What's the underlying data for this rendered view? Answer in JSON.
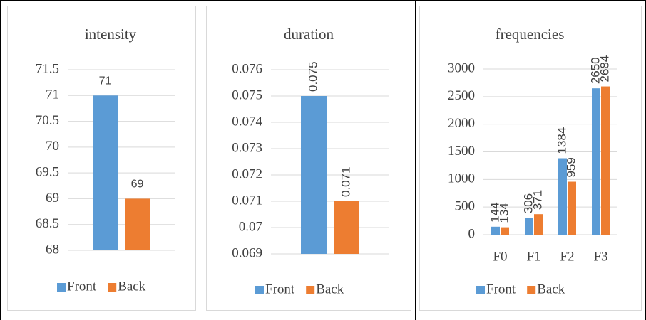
{
  "chart_data": [
    {
      "type": "bar",
      "title": "intensity",
      "categories": [
        null
      ],
      "series": [
        {
          "name": "Front",
          "color": "#5b9bd5",
          "values": [
            71
          ]
        },
        {
          "name": "Back",
          "color": "#ed7d31",
          "values": [
            69
          ]
        }
      ],
      "ylim": [
        68,
        71.5
      ],
      "yticks": [
        68,
        68.5,
        69,
        69.5,
        70,
        70.5,
        71,
        71.5
      ],
      "grid": true,
      "legend": "bottom"
    },
    {
      "type": "bar",
      "title": "duration",
      "categories": [
        null
      ],
      "series": [
        {
          "name": "Front",
          "color": "#5b9bd5",
          "values": [
            0.075
          ]
        },
        {
          "name": "Back",
          "color": "#ed7d31",
          "values": [
            0.071
          ]
        }
      ],
      "ylim": [
        0.069,
        0.076
      ],
      "yticks": [
        0.069,
        0.07,
        0.071,
        0.072,
        0.073,
        0.074,
        0.075,
        0.076
      ],
      "grid": true,
      "legend": "bottom"
    },
    {
      "type": "bar",
      "title": "frequencies",
      "categories": [
        "F0",
        "F1",
        "F2",
        "F3"
      ],
      "series": [
        {
          "name": "Front",
          "color": "#5b9bd5",
          "values": [
            144,
            306,
            1384,
            2650
          ]
        },
        {
          "name": "Back",
          "color": "#ed7d31",
          "values": [
            134,
            371,
            959,
            2684
          ]
        }
      ],
      "ylim": [
        0,
        3000
      ],
      "yticks": [
        0,
        500,
        1000,
        1500,
        2000,
        2500,
        3000
      ],
      "grid": true,
      "legend": "bottom"
    }
  ]
}
